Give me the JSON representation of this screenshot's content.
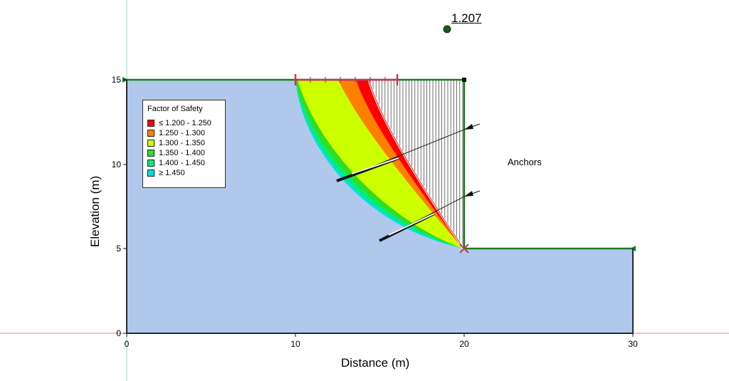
{
  "diagram": {
    "fos_value": "1.207",
    "anchors_label": "Anchors",
    "xlabel": "Distance (m)",
    "ylabel": "Elevation (m)",
    "x_ticks": [
      "0",
      "10",
      "20",
      "30"
    ],
    "y_ticks": [
      "0",
      "5",
      "10",
      "15"
    ],
    "colors": {
      "soil": "#b0c8ec",
      "boundary": "#1f7a1f",
      "surface": "#c0395a",
      "anchor": "#111111"
    }
  },
  "legend": {
    "title": "Factor of Safety",
    "items": [
      {
        "label": "≤ 1.200 - 1.250",
        "color": "#ff0000"
      },
      {
        "label": "1.250 - 1.300",
        "color": "#ff8000"
      },
      {
        "label": "1.300 - 1.350",
        "color": "#ccff00"
      },
      {
        "label": "1.350 - 1.400",
        "color": "#33dd22"
      },
      {
        "label": "1.400 - 1.450",
        "color": "#00ee77"
      },
      {
        "label": "≥ 1.450",
        "color": "#00e0e0"
      }
    ]
  }
}
